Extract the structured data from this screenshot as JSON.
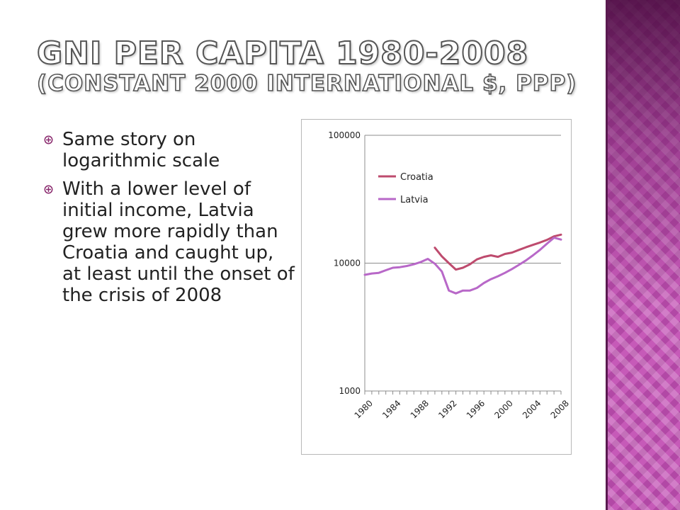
{
  "slide": {
    "title_line1": "GNI per capita 1980-2008",
    "title_line2": "(constant 2000 international $, PPP)",
    "bullets": [
      "Same story on logarithmic scale",
      "With a lower level of initial income, Latvia grew more rapidly than Croatia and caught up, at least until the onset of the crisis of 2008"
    ],
    "bullet_icon": "circle-cross-icon",
    "colors": {
      "accent_band": "#c65ab8",
      "title_fill": "#ffffff",
      "title_outline": "#555555"
    }
  },
  "chart_data": {
    "type": "line",
    "title": "",
    "xlabel": "",
    "ylabel": "",
    "y_scale": "log",
    "ylim": [
      1000,
      100000
    ],
    "y_ticks": [
      1000,
      10000,
      100000
    ],
    "y_tick_labels": [
      "1000",
      "10000",
      "100000"
    ],
    "x_tick_labels": [
      "1980",
      "1984",
      "1988",
      "1992",
      "1996",
      "2000",
      "2004",
      "2008"
    ],
    "x_range": [
      1980,
      2008
    ],
    "grid": "horizontal",
    "legend": "top-left, inside plot",
    "series": [
      {
        "name": "Croatia",
        "color": "#be4b6e",
        "x": [
          1990,
          1991,
          1992,
          1993,
          1994,
          1995,
          1996,
          1997,
          1998,
          1999,
          2000,
          2001,
          2002,
          2003,
          2004,
          2005,
          2006,
          2007,
          2008
        ],
        "values": [
          13200,
          11300,
          10000,
          8900,
          9200,
          9800,
          10700,
          11200,
          11500,
          11200,
          11800,
          12100,
          12700,
          13300,
          13900,
          14500,
          15200,
          16200,
          16700
        ]
      },
      {
        "name": "Latvia",
        "color": "#b868c8",
        "x": [
          1980,
          1981,
          1982,
          1983,
          1984,
          1985,
          1986,
          1987,
          1988,
          1989,
          1990,
          1991,
          1992,
          1993,
          1994,
          1995,
          1996,
          1997,
          1998,
          1999,
          2000,
          2001,
          2002,
          2003,
          2004,
          2005,
          2006,
          2007,
          2008
        ],
        "values": [
          8100,
          8300,
          8400,
          8800,
          9200,
          9300,
          9500,
          9800,
          10200,
          10800,
          9900,
          8600,
          6100,
          5800,
          6100,
          6100,
          6400,
          7000,
          7500,
          7900,
          8400,
          9000,
          9700,
          10500,
          11500,
          12700,
          14200,
          15800,
          15300
        ]
      }
    ]
  }
}
